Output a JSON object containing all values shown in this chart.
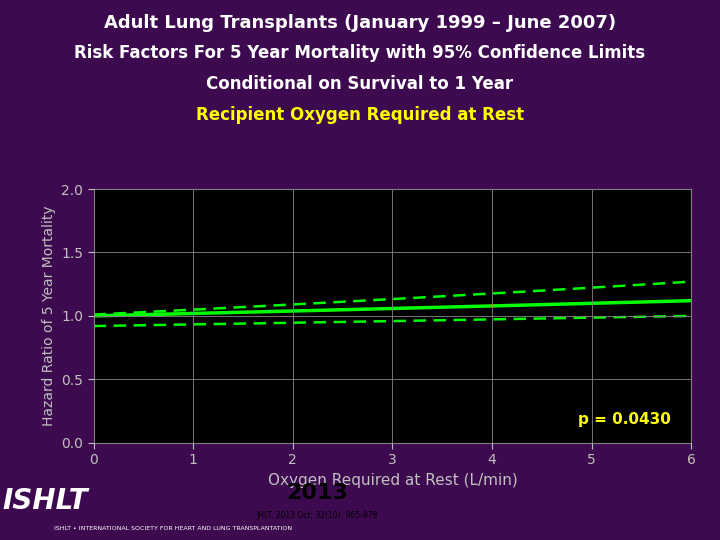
{
  "title_line1": "Adult Lung Transplants (January 1999 – June 2007)",
  "title_line2": "Risk Factors For 5 Year Mortality with 95% Confidence Limits",
  "title_line3": "Conditional on Survival to 1 Year",
  "title_line4": "Recipient Oxygen Required at Rest",
  "xlabel": "Oxygen Required at Rest (L/min)",
  "ylabel": "Hazard Ratio of 5 Year Mortality",
  "xlim": [
    0,
    6
  ],
  "ylim": [
    0.0,
    2.0
  ],
  "yticks": [
    0.0,
    0.5,
    1.0,
    1.5,
    2.0
  ],
  "xticks": [
    0,
    1,
    2,
    3,
    4,
    5,
    6
  ],
  "p_value_text": "p = 0.0430",
  "bg_color": "#3d0a4f",
  "plot_bg_color": "#000000",
  "title_color": "#ffffff",
  "title4_color": "#ffff00",
  "axis_label_color": "#c0c0c0",
  "tick_color": "#c0c0c0",
  "grid_color": "#808080",
  "line_color": "#00ff00",
  "p_value_color": "#ffff00",
  "main_line_y0": 1.0,
  "main_line_y1": 1.12,
  "upper_ci_y0": 1.01,
  "upper_ci_y1": 1.27,
  "lower_ci_y0": 0.92,
  "lower_ci_y1": 1.0,
  "logo_bg_color": "#cc0000",
  "logo_text_color": "#ffffff",
  "year_bg_color": "#ffffff",
  "year_text_color": "#000000",
  "ishlt_text": "ISHLT",
  "ishlt_sub": "ISHLT • INTERNATIONAL SOCIETY FOR HEART AND LUNG TRANSPLANTATION",
  "year": "2013",
  "journal": "JHLT. 2013 Oct; 32(10): 965-978"
}
